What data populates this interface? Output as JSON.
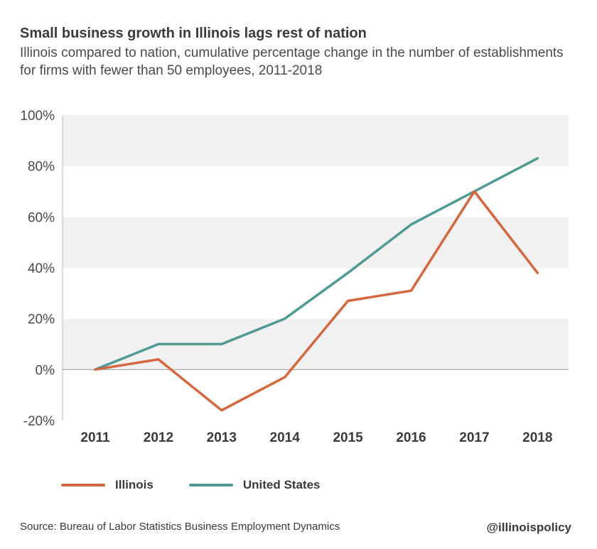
{
  "header": {
    "title": "Small business growth in Illinois lags rest of nation",
    "subtitle": "Illinois compared to nation, cumulative percentage change in the number of establishments for firms with fewer than 50 employees, 2011-2018"
  },
  "chart_data": {
    "type": "line",
    "title": "Small business growth in Illinois lags rest of nation",
    "subtitle": "Illinois compared to nation, cumulative percentage change in the number of establishments for firms with fewer than 50 employees, 2011-2018",
    "categories": [
      "2011",
      "2012",
      "2013",
      "2014",
      "2015",
      "2016",
      "2017",
      "2018"
    ],
    "series": [
      {
        "name": "Illinois",
        "color": "#d4673f",
        "values": [
          0,
          4,
          -16,
          -3,
          27,
          31,
          70,
          38
        ]
      },
      {
        "name": "United States",
        "color": "#4f9a92",
        "values": [
          0,
          10,
          10,
          20,
          38,
          57,
          70,
          83
        ]
      }
    ],
    "ylim": [
      -20,
      100
    ],
    "yticks": [
      100,
      80,
      60,
      40,
      20,
      0,
      -20
    ],
    "ytick_labels": [
      "100%",
      "80%",
      "60%",
      "40%",
      "20%",
      "0%",
      "-20%"
    ],
    "grid": "alternating horizontal bands",
    "band_color": "#f1f1f1",
    "legend_position": "bottom-left",
    "xlabel": "",
    "ylabel": ""
  },
  "legend": {
    "items": [
      {
        "label": "Illinois",
        "color": "#d4673f"
      },
      {
        "label": "United States",
        "color": "#4f9a92"
      }
    ]
  },
  "footer": {
    "source": "Source: Bureau of Labor Statistics Business Employment Dynamics",
    "handle": "@illinoispolicy"
  }
}
